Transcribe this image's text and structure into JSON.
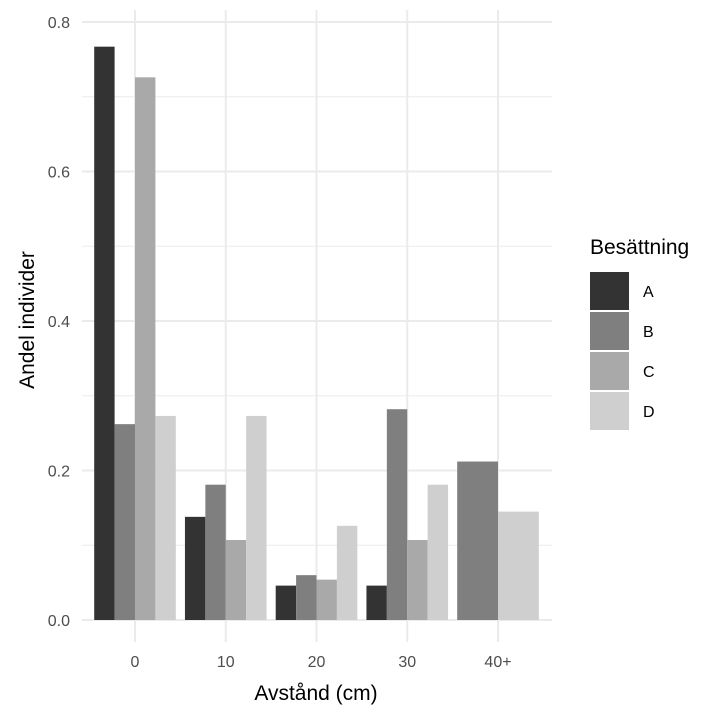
{
  "chart_data": {
    "type": "bar",
    "xlabel": "Avstånd (cm)",
    "ylabel": "Andel individer",
    "ylim": [
      0,
      0.8
    ],
    "yticks": [
      "0.0",
      "0.2",
      "0.4",
      "0.6",
      "0.8"
    ],
    "grid": true,
    "legend_title": "Besättning",
    "legend_position": "right",
    "categories": [
      "0",
      "10",
      "20",
      "30",
      "40+"
    ],
    "series": [
      {
        "name": "A",
        "color": "#333333",
        "values": [
          0.767,
          0.138,
          0.046,
          0.046,
          null
        ]
      },
      {
        "name": "B",
        "color": "#7f7f7f",
        "values": [
          0.262,
          0.181,
          0.06,
          0.282,
          0.212
        ]
      },
      {
        "name": "C",
        "color": "#a9a9a9",
        "values": [
          0.726,
          0.107,
          0.054,
          0.107,
          null
        ]
      },
      {
        "name": "D",
        "color": "#cfcfcf",
        "values": [
          0.273,
          0.273,
          0.126,
          0.181,
          0.145
        ]
      }
    ]
  }
}
